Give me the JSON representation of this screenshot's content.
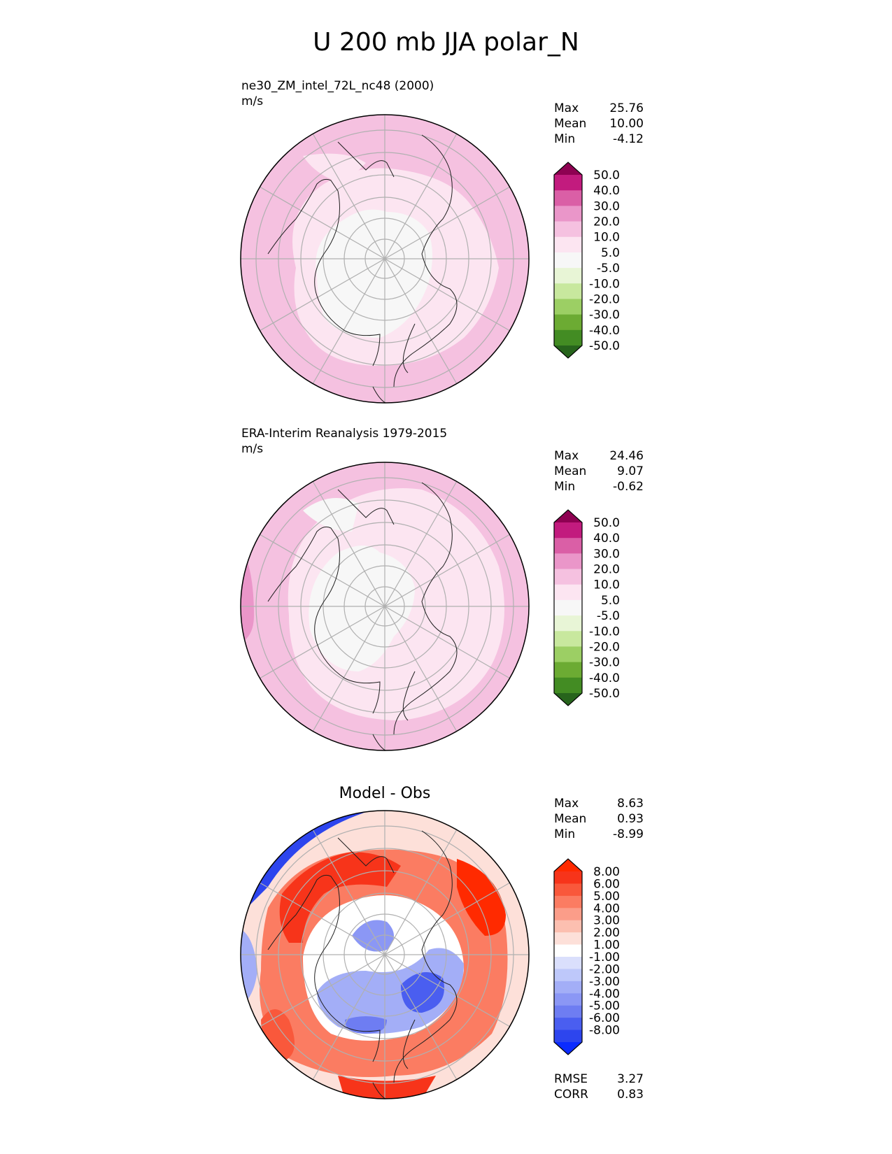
{
  "title": "U 200 mb JJA polar_N",
  "colors": {
    "purple": [
      "#f7f7f7",
      "#fce5f1",
      "#f5c1e0",
      "#ea96c9",
      "#da5fa6",
      "#c21b7e",
      "#8e0152"
    ],
    "green": [
      "#f7f7f7",
      "#e8f5d6",
      "#c8e89e",
      "#9ccf64",
      "#6cab33",
      "#438c23",
      "#27641c"
    ],
    "red": [
      "#ffffff",
      "#fde0d9",
      "#fcbfb0",
      "#fb9d89",
      "#fb7c62",
      "#f9583b",
      "#f7341a",
      "#ff2a00"
    ],
    "blue": [
      "#ffffff",
      "#dadffc",
      "#bec8fa",
      "#a3aef7",
      "#8b97f5",
      "#6e7df2",
      "#4a5ef0",
      "#2d45ee",
      "#0b2bff"
    ],
    "land": "#f4f4f4",
    "grid": "#b0b0b0",
    "coast": "#1f1f1f"
  },
  "chart_data": [
    {
      "type": "contour-map",
      "projection": "polar stereographic (north)",
      "title_line1": "ne30_ZM_intel_72L_nc48 (2000)",
      "units": "m/s",
      "stats": [
        {
          "label": "Max",
          "value": "25.76"
        },
        {
          "label": "Mean",
          "value": "10.00"
        },
        {
          "label": "Min",
          "value": "-4.12"
        }
      ],
      "colorbar_levels": [
        "50.0",
        "40.0",
        "30.0",
        "20.0",
        "10.0",
        "5.0",
        "-5.0",
        "-10.0",
        "-20.0",
        "-30.0",
        "-40.0",
        "-50.0"
      ],
      "field_summary": {
        "pole": [
          -5,
          5
        ],
        "mid_lat": [
          5,
          10
        ],
        "low_lat": [
          10,
          20
        ],
        "edge_max": [
          20,
          30
        ]
      }
    },
    {
      "type": "contour-map",
      "projection": "polar stereographic (north)",
      "title_line1": "ERA-Interim Reanalysis 1979-2015",
      "units": "m/s",
      "stats": [
        {
          "label": "Max",
          "value": "24.46"
        },
        {
          "label": "Mean",
          "value": "9.07"
        },
        {
          "label": "Min",
          "value": "-0.62"
        }
      ],
      "colorbar_levels": [
        "50.0",
        "40.0",
        "30.0",
        "20.0",
        "10.0",
        "5.0",
        "-5.0",
        "-10.0",
        "-20.0",
        "-30.0",
        "-40.0",
        "-50.0"
      ],
      "field_summary": {
        "pole": [
          -5,
          5
        ],
        "mid_lat": [
          5,
          10
        ],
        "low_lat": [
          10,
          20
        ],
        "edge_max": [
          20,
          30
        ]
      }
    },
    {
      "type": "contour-map",
      "projection": "polar stereographic (north)",
      "title": "Model - Obs",
      "stats": [
        {
          "label": "Max",
          "value": "8.63"
        },
        {
          "label": "Mean",
          "value": "0.93"
        },
        {
          "label": "Min",
          "value": "-8.99"
        }
      ],
      "colorbar_levels": [
        "8.00",
        "6.00",
        "5.00",
        "4.00",
        "3.00",
        "2.00",
        "1.00",
        "-1.00",
        "-2.00",
        "-3.00",
        "-4.00",
        "-5.00",
        "-6.00",
        "-8.00"
      ],
      "metrics": [
        {
          "label": "RMSE",
          "value": "3.27"
        },
        {
          "label": "CORR",
          "value": "0.83"
        }
      ]
    }
  ]
}
